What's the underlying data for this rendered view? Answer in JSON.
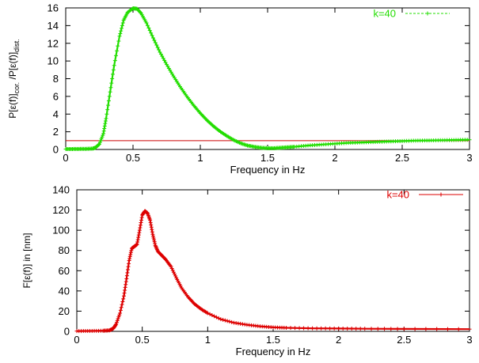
{
  "chart_data": [
    {
      "type": "line",
      "xlabel": "Frequency in Hz",
      "ylabel_parts": [
        "P[ε(f)]",
        "cor.",
        " /P[ε(f)]",
        "dist."
      ],
      "xlim": [
        0,
        3
      ],
      "ylim": [
        0,
        16
      ],
      "xticks": [
        "0",
        "0.5",
        "1",
        "1.5",
        "2",
        "2.5",
        "3"
      ],
      "yticks": [
        "0",
        "2",
        "4",
        "6",
        "8",
        "10",
        "12",
        "14",
        "16"
      ],
      "legend_position": "top-right",
      "reference_line": {
        "y": 1,
        "color": "#cc0000"
      },
      "series": [
        {
          "name": "k=40",
          "color": "#22dd00",
          "x": [
            0,
            0.05,
            0.1,
            0.15,
            0.2,
            0.22,
            0.25,
            0.28,
            0.3,
            0.33,
            0.36,
            0.4,
            0.43,
            0.46,
            0.5,
            0.53,
            0.56,
            0.6,
            0.65,
            0.7,
            0.75,
            0.8,
            0.85,
            0.9,
            0.95,
            1.0,
            1.05,
            1.1,
            1.15,
            1.2,
            1.25,
            1.3,
            1.35,
            1.4,
            1.45,
            1.5,
            1.55,
            1.6,
            1.65,
            1.7,
            1.8,
            1.9,
            2.0,
            2.1,
            2.2,
            2.3,
            2.4,
            2.5,
            2.6,
            2.7,
            2.8,
            2.9,
            3.0
          ],
          "y": [
            0.05,
            0.05,
            0.06,
            0.07,
            0.1,
            0.2,
            0.6,
            1.8,
            3.5,
            6.5,
            9.5,
            12.8,
            14.6,
            15.5,
            15.95,
            15.9,
            15.4,
            14.3,
            12.6,
            11.0,
            9.6,
            8.3,
            7.1,
            6.0,
            5.0,
            4.1,
            3.3,
            2.6,
            2.0,
            1.5,
            1.05,
            0.7,
            0.45,
            0.3,
            0.2,
            0.15,
            0.15,
            0.2,
            0.25,
            0.3,
            0.45,
            0.55,
            0.65,
            0.75,
            0.8,
            0.85,
            0.9,
            0.95,
            1.0,
            1.02,
            1.05,
            1.07,
            1.1
          ]
        }
      ]
    },
    {
      "type": "line",
      "xlabel": "Frequency in Hz",
      "ylabel": "F[ε(f)] in [nm]",
      "xlim": [
        0,
        3
      ],
      "ylim": [
        0,
        140
      ],
      "xticks": [
        "0",
        "0.5",
        "1",
        "1.5",
        "2",
        "2.5",
        "3"
      ],
      "yticks": [
        "0",
        "20",
        "40",
        "60",
        "80",
        "100",
        "120",
        "140"
      ],
      "legend_position": "top-right",
      "series": [
        {
          "name": "k=40",
          "color": "#dd0000",
          "x": [
            0,
            0.1,
            0.2,
            0.25,
            0.28,
            0.3,
            0.33,
            0.36,
            0.38,
            0.4,
            0.42,
            0.44,
            0.46,
            0.48,
            0.5,
            0.52,
            0.54,
            0.56,
            0.58,
            0.6,
            0.62,
            0.65,
            0.68,
            0.72,
            0.76,
            0.8,
            0.85,
            0.9,
            0.95,
            1.0,
            1.1,
            1.2,
            1.3,
            1.4,
            1.5,
            1.6,
            1.8,
            2.0,
            2.2,
            2.5,
            3.0
          ],
          "y": [
            0.3,
            0.4,
            0.6,
            1.0,
            3.0,
            7.0,
            18.0,
            35.0,
            52.0,
            70.0,
            82.0,
            84.0,
            86.0,
            100.0,
            115.0,
            119.0,
            117.0,
            110.0,
            96.0,
            85.0,
            79.0,
            75.0,
            71.0,
            64.0,
            53.0,
            43.0,
            34.0,
            27.0,
            22.0,
            18.0,
            12.0,
            8.5,
            6.5,
            5.0,
            4.0,
            3.5,
            3.0,
            2.8,
            2.6,
            2.4,
            2.2
          ]
        }
      ]
    }
  ]
}
